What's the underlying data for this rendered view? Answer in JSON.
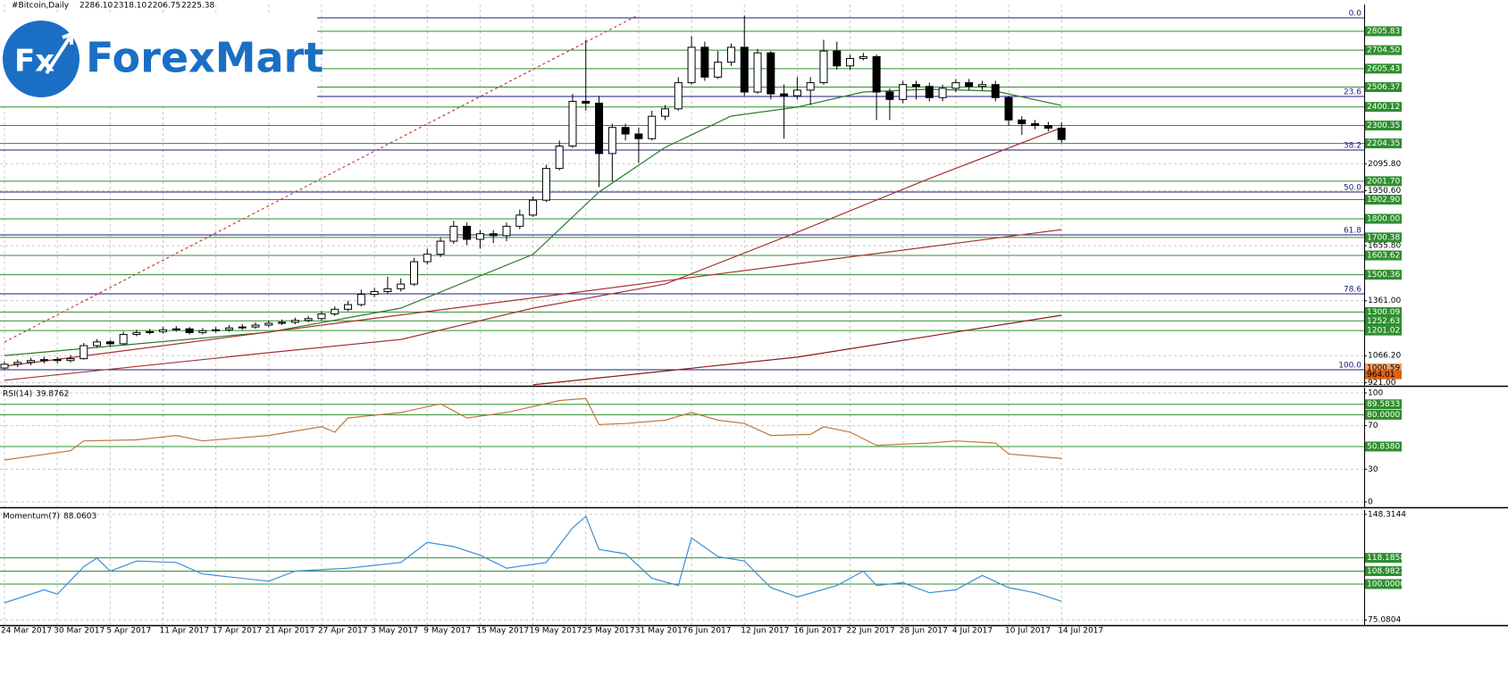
{
  "logo": {
    "mark": "Fx",
    "name": "ForexMart"
  },
  "chart_data": [
    {
      "type": "candlestick",
      "title": "#Bitcoin,Daily",
      "ohlc_labels": [
        "2286.10",
        "2318.10",
        "2206.75",
        "2225.38"
      ],
      "categories": [
        "24 Mar 2017",
        null,
        null,
        null,
        "30 Mar 2017",
        null,
        null,
        null,
        "5 Apr 2017",
        null,
        null,
        null,
        "11 Apr 2017",
        null,
        null,
        null,
        "17 Apr 2017",
        null,
        null,
        null,
        "21 Apr 2017",
        null,
        null,
        null,
        "27 Apr 2017",
        null,
        null,
        null,
        "3 May 2017",
        null,
        null,
        null,
        "9 May 2017",
        null,
        null,
        null,
        "15 May 2017",
        null,
        null,
        null,
        "19 May 2017",
        null,
        null,
        null,
        "25 May 2017",
        null,
        null,
        null,
        "31 May 2017",
        null,
        null,
        null,
        "6 Jun 2017",
        null,
        null,
        null,
        "12 Jun 2017",
        null,
        null,
        null,
        "16 Jun 2017",
        null,
        null,
        null,
        "22 Jun 2017",
        null,
        null,
        null,
        "28 Jun 2017",
        null,
        null,
        null,
        "4 Jul 2017",
        null,
        null,
        null,
        "10 Jul 2017",
        null,
        null,
        null,
        "14 Jul 2017"
      ],
      "open": [
        1000,
        1020,
        1030,
        1040,
        1045,
        1040,
        1050,
        1120,
        1140,
        1130,
        1180,
        1190,
        1195,
        1205,
        1210,
        1190,
        1200,
        1205,
        1215,
        1220,
        1230,
        1240,
        1245,
        1255,
        1265,
        1290,
        1315,
        1340,
        1395,
        1410,
        1425,
        1450,
        1570,
        1610,
        1680,
        1760,
        1690,
        1720,
        1710,
        1760,
        1820,
        1900,
        2070,
        2190,
        2430,
        2420,
        2150,
        2290,
        2255,
        2230,
        2350,
        2390,
        2530,
        2720,
        2560,
        2640,
        2720,
        2480,
        2690,
        2470,
        2460,
        2490,
        2530,
        2700,
        2620,
        2660,
        2670,
        2480,
        2440,
        2520,
        2510,
        2450,
        2500,
        2530,
        2510,
        2520,
        2450,
        2330,
        2310,
        2300,
        2286.1
      ],
      "high": [
        1035,
        1045,
        1055,
        1060,
        1060,
        1070,
        1135,
        1155,
        1150,
        1195,
        1205,
        1210,
        1220,
        1225,
        1220,
        1215,
        1220,
        1230,
        1235,
        1245,
        1255,
        1260,
        1270,
        1280,
        1305,
        1330,
        1360,
        1420,
        1430,
        1490,
        1480,
        1590,
        1640,
        1700,
        1790,
        1780,
        1740,
        1740,
        1780,
        1850,
        1920,
        2090,
        2220,
        2470,
        2760,
        2460,
        2310,
        2310,
        2290,
        2380,
        2410,
        2560,
        2780,
        2750,
        2700,
        2740,
        2890,
        2710,
        2700,
        2520,
        2560,
        2560,
        2760,
        2750,
        2680,
        2690,
        2680,
        2500,
        2540,
        2540,
        2530,
        2520,
        2550,
        2550,
        2540,
        2540,
        2460,
        2350,
        2330,
        2320,
        2318.1
      ],
      "low": [
        990,
        1005,
        1015,
        1025,
        1025,
        1030,
        1045,
        1110,
        1115,
        1125,
        1170,
        1180,
        1185,
        1195,
        1180,
        1180,
        1190,
        1195,
        1205,
        1210,
        1220,
        1230,
        1235,
        1245,
        1255,
        1280,
        1305,
        1330,
        1380,
        1395,
        1410,
        1440,
        1555,
        1595,
        1665,
        1660,
        1640,
        1670,
        1680,
        1745,
        1810,
        1890,
        2060,
        2180,
        2380,
        1970,
        2000,
        2220,
        2100,
        2220,
        2330,
        2380,
        2520,
        2540,
        2550,
        2620,
        2460,
        2470,
        2440,
        2230,
        2440,
        2410,
        2520,
        2600,
        2600,
        2650,
        2330,
        2330,
        2420,
        2440,
        2430,
        2430,
        2480,
        2490,
        2490,
        2430,
        2300,
        2250,
        2280,
        2270,
        2206.75
      ],
      "close": [
        1020,
        1030,
        1040,
        1045,
        1040,
        1050,
        1120,
        1140,
        1130,
        1180,
        1190,
        1195,
        1205,
        1210,
        1190,
        1200,
        1205,
        1215,
        1220,
        1230,
        1240,
        1245,
        1255,
        1265,
        1290,
        1315,
        1340,
        1395,
        1410,
        1425,
        1450,
        1570,
        1610,
        1680,
        1760,
        1690,
        1720,
        1710,
        1760,
        1820,
        1900,
        2070,
        2190,
        2430,
        2420,
        2150,
        2290,
        2255,
        2230,
        2350,
        2390,
        2530,
        2720,
        2560,
        2640,
        2720,
        2480,
        2690,
        2470,
        2460,
        2490,
        2530,
        2700,
        2620,
        2660,
        2670,
        2480,
        2440,
        2520,
        2510,
        2450,
        2500,
        2530,
        2510,
        2520,
        2450,
        2330,
        2310,
        2300,
        2286.1,
        2225.38
      ],
      "overlays": [
        {
          "color": "#2a7a2a",
          "x": [
            0,
            20,
            30,
            40,
            45,
            50,
            55,
            60,
            65,
            70,
            75,
            80
          ],
          "values": [
            1067,
            1192,
            1321,
            1609,
            1944,
            2183,
            2351,
            2399,
            2480,
            2495,
            2485,
            2408
          ]
        },
        {
          "color": "#a83232",
          "x": [
            0,
            20,
            30,
            40,
            50,
            60,
            70,
            80
          ],
          "values": [
            934,
            1082,
            1153,
            1321,
            1450,
            1728,
            2016,
            2289
          ]
        },
        {
          "color": "#a83232",
          "x": [
            0,
            80
          ],
          "values": [
            1010,
            1742
          ]
        },
        {
          "color": "#8b1a1a",
          "x": [
            40,
            60,
            80
          ],
          "values": [
            910,
            1058,
            1283
          ]
        }
      ],
      "trendline": {
        "color": "#c04040",
        "x": [
          0,
          47.8
        ],
        "values": [
          1139,
          2887
        ]
      },
      "ylim": [
        904.5,
        2949.5
      ],
      "yticks": [
        {
          "value": 2095.8,
          "label": "2095.80"
        },
        {
          "value": 1950.6,
          "label": "1950.60"
        },
        {
          "value": 1655.8,
          "label": "1655.80"
        },
        {
          "value": 1361,
          "label": "1361.00"
        },
        {
          "value": 1066.2,
          "label": "1066.20"
        },
        {
          "value": 921,
          "label": "921.00"
        }
      ],
      "grid": true,
      "level_color": "#2d8f2d",
      "levels": [
        2805.83,
        {
          "value": 2704.5,
          "label": "2704.50"
        },
        2605.43,
        2506.37,
        2400.12,
        2300.35,
        2204.35,
        {
          "value": 2001.7,
          "label": "2001.70"
        },
        {
          "value": 1902.9,
          "label": "1902.90"
        },
        {
          "value": 1800,
          "label": "1800.00"
        },
        1700.38,
        1603.62,
        1500.36,
        1300.09,
        1252.63,
        1201.02
      ],
      "price_labels": [
        {
          "value": 1000.59,
          "label": "1000.59",
          "color": "#f0a060"
        },
        {
          "value": 964.01,
          "label": "964.01",
          "color": "#e06010"
        }
      ],
      "fib_color": "#1a1a80",
      "fib_levels": {
        "labels": [
          "0.0",
          "23.6",
          "38.2",
          "50.0",
          "61.8",
          "78.6",
          "100.0"
        ],
        "prices": [
          2877.7,
          2456.2,
          2168.8,
          1943.7,
          1713.9,
          1397.8,
          990.7
        ]
      }
    },
    {
      "type": "line",
      "title": "RSI(14)",
      "color": "#c0783c",
      "x": [
        0,
        5,
        6,
        10,
        13,
        15,
        20,
        24,
        25,
        26,
        30,
        33,
        35,
        38,
        42,
        44,
        45,
        47,
        50,
        52,
        54,
        56,
        58,
        61,
        62,
        64,
        66,
        70,
        72,
        75,
        76,
        80
      ],
      "values": [
        38.5,
        47,
        56,
        57,
        61,
        56,
        61,
        69,
        64,
        77,
        82,
        90,
        77,
        82,
        93,
        95,
        71,
        72,
        75,
        82,
        75,
        72,
        61,
        62,
        69,
        64,
        52,
        54,
        56,
        54,
        44,
        39.8762
      ],
      "ylim": [
        -4.9,
        104.9
      ],
      "yticks": [
        100,
        70,
        30,
        0
      ],
      "grid": true,
      "level_color": "#2d8f2d",
      "levels": [
        89.5833,
        {
          "value": 80,
          "label": "80.0000"
        },
        {
          "value": 50.838,
          "label": "50.8380"
        }
      ]
    },
    {
      "type": "line",
      "title": "Momentum(7)",
      "color": "#3a8fd0",
      "x": [
        0,
        3,
        4,
        6,
        7,
        8,
        10,
        13,
        15,
        20,
        22,
        26,
        30,
        32,
        34,
        36,
        38,
        41,
        43,
        44,
        45,
        47,
        49,
        51,
        52,
        54,
        56,
        58,
        60,
        63,
        65,
        66,
        68,
        70,
        72,
        74,
        76,
        78,
        80
      ],
      "values": [
        87,
        96,
        93,
        112,
        118,
        109,
        116,
        115,
        107,
        102,
        109,
        111,
        115,
        128.9,
        126,
        120,
        111,
        115,
        139,
        147,
        124,
        121,
        104,
        99,
        132,
        119,
        116,
        97.5,
        91,
        99,
        109,
        99,
        101,
        94,
        96,
        106,
        97.5,
        94,
        88.0603
      ],
      "ylim": [
        71.5,
        151.4
      ],
      "yticks": [
        148.3144,
        75.0804
      ],
      "grid": true,
      "level_color": "#2d8f2d",
      "levels": [
        118.1858,
        108.9823,
        {
          "value": 100,
          "label": "100.0000"
        }
      ]
    }
  ]
}
